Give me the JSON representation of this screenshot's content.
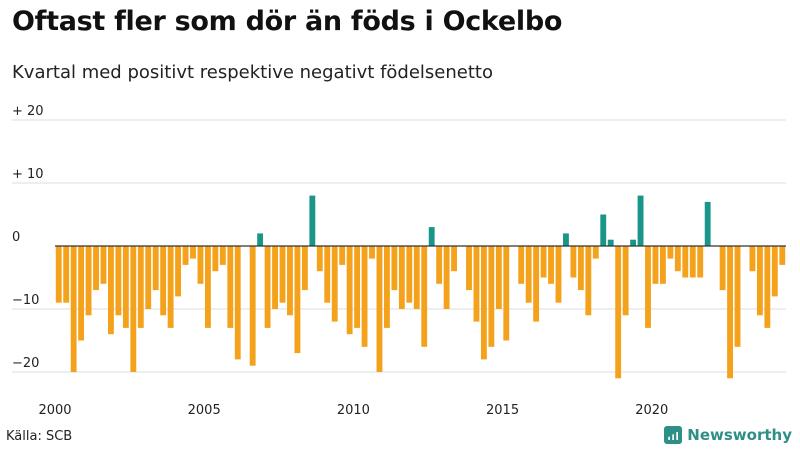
{
  "header": {
    "title": "Oftast fler som dör än föds i Ockelbo",
    "subtitle": "Kvartal med positivt respektive negativt födelsenetto"
  },
  "footer": {
    "source": "Källa: SCB",
    "brand": "Newsworthy"
  },
  "colors": {
    "positive": "#1a9688",
    "negative": "#f4a21c",
    "grid": "#dddddd",
    "axis": "#333333"
  },
  "chart_data": {
    "type": "bar",
    "title": "Oftast fler som dör än föds i Ockelbo",
    "subtitle": "Kvartal med positivt respektive negativt födelsenetto",
    "xlabel": "",
    "ylabel": "",
    "ylim": [
      -22,
      20
    ],
    "yticks": [
      {
        "value": 20,
        "label": "+ 20"
      },
      {
        "value": 10,
        "label": "+ 10"
      },
      {
        "value": 0,
        "label": "0"
      },
      {
        "value": -10,
        "label": "−10"
      },
      {
        "value": -20,
        "label": "−20"
      }
    ],
    "xticks": [
      {
        "value": 2000,
        "label": "2000"
      },
      {
        "value": 2005,
        "label": "2005"
      },
      {
        "value": 2010,
        "label": "2010"
      },
      {
        "value": 2015,
        "label": "2015"
      },
      {
        "value": 2020,
        "label": "2020"
      }
    ],
    "start_year": 2000,
    "start_quarter": 1,
    "quarters_per_year": 4,
    "values": [
      -9,
      -9,
      -20,
      -15,
      -11,
      -7,
      -6,
      -14,
      -11,
      -13,
      -20,
      -13,
      -10,
      -7,
      -11,
      -13,
      -8,
      -3,
      -2,
      -6,
      -13,
      -4,
      -3,
      -13,
      -18,
      0,
      -19,
      2,
      -13,
      -10,
      -9,
      -11,
      -17,
      -7,
      8,
      -4,
      -9,
      -12,
      -3,
      -14,
      -13,
      -16,
      -2,
      -20,
      -13,
      -7,
      -10,
      -9,
      -10,
      -16,
      3,
      -6,
      -10,
      -4,
      0,
      -7,
      -12,
      -18,
      -16,
      -10,
      -15,
      0,
      -6,
      -9,
      -12,
      -5,
      -6,
      -9,
      2,
      -5,
      -7,
      -11,
      -2,
      5,
      1,
      -21,
      -11,
      1,
      8,
      -13,
      -6,
      -6,
      -2,
      -4,
      -5,
      -5,
      -5,
      7,
      0,
      -7,
      -21,
      -16,
      0,
      -4,
      -11,
      -13,
      -8,
      -3
    ]
  }
}
